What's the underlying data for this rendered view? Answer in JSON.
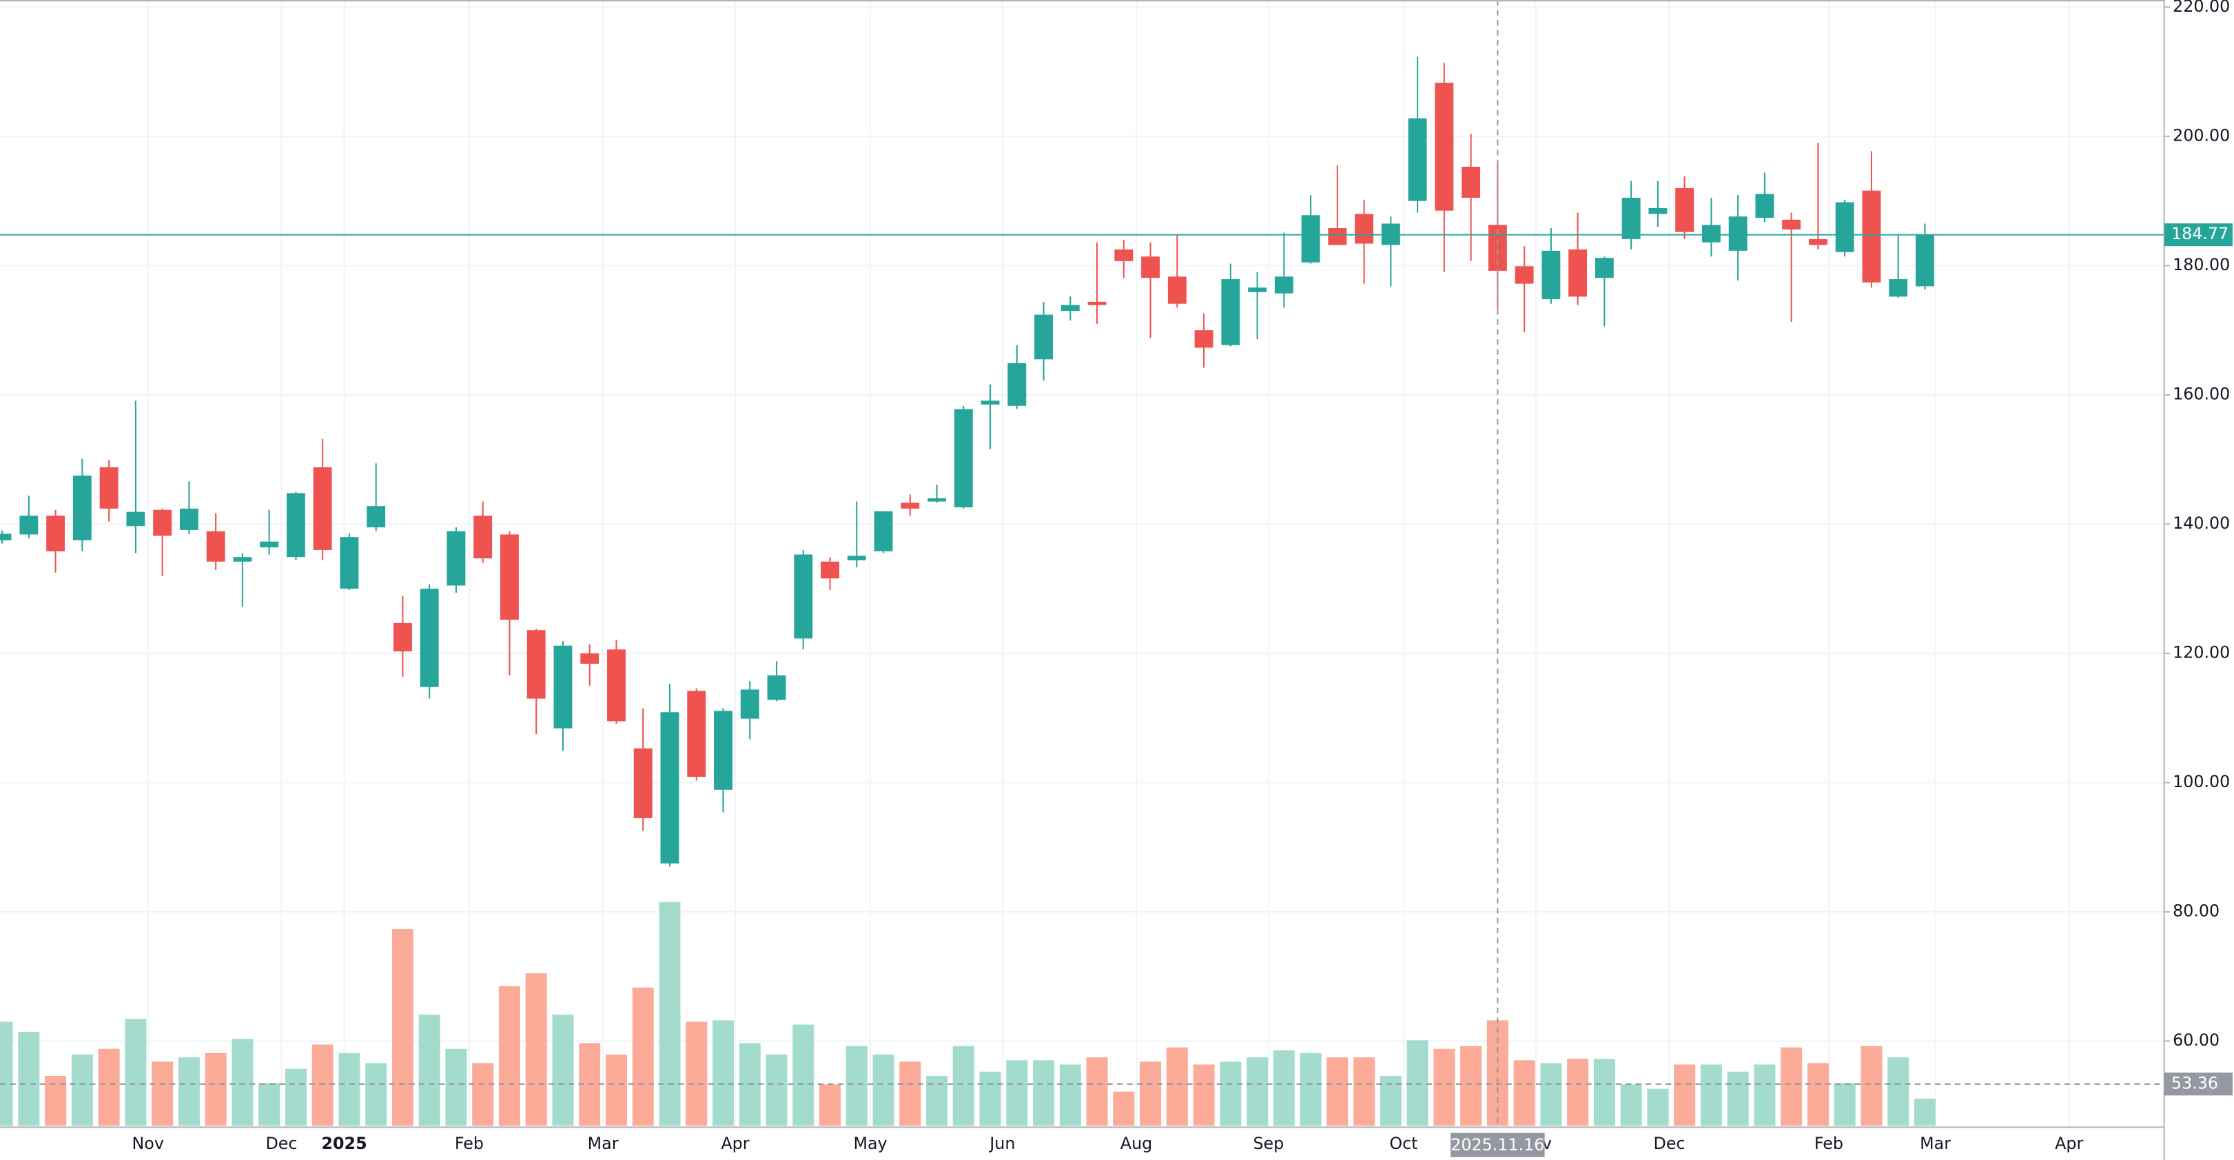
{
  "chart_data": {
    "type": "candlestick",
    "x": [
      0,
      1,
      2,
      3,
      4,
      5,
      6,
      7,
      8,
      9,
      10,
      11,
      12,
      13,
      14,
      15,
      16,
      17,
      18,
      19,
      20,
      21,
      22,
      23,
      24,
      25,
      26,
      27,
      28,
      29,
      30,
      31,
      32,
      33,
      34,
      35,
      36,
      37,
      38,
      39,
      40,
      41,
      42,
      43,
      44,
      45,
      46,
      47,
      48,
      49,
      50,
      51,
      52,
      53,
      54,
      55,
      56,
      57,
      58,
      59,
      60,
      61,
      62,
      63,
      64,
      65,
      66,
      67,
      68,
      69,
      70,
      71,
      72
    ],
    "open": [
      137.5,
      138.4,
      141.3,
      137.5,
      148.8,
      139.7,
      142.2,
      139.1,
      138.9,
      134.2,
      136.4,
      134.9,
      148.8,
      130.0,
      139.5,
      124.7,
      114.8,
      130.5,
      141.3,
      138.4,
      123.6,
      108.4,
      120.0,
      120.6,
      105.3,
      87.5,
      114.2,
      98.9,
      109.9,
      112.8,
      122.3,
      134.2,
      134.4,
      135.8,
      143.3,
      143.5,
      142.6,
      158.5,
      158.3,
      165.5,
      173.0,
      174.4,
      182.5,
      181.4,
      178.3,
      170.0,
      167.7,
      175.9,
      175.7,
      180.5,
      185.8,
      188.0,
      183.2,
      190.0,
      208.3,
      195.3,
      186.3,
      179.9,
      174.8,
      182.5,
      178.1,
      184.1,
      188.0,
      192.0,
      183.6,
      182.3,
      187.4,
      187.1,
      184.1,
      182.1,
      191.6,
      175.2,
      176.8
    ],
    "high": [
      139,
      144.4,
      142.2,
      150.1,
      149.9,
      159.1,
      142.4,
      146.6,
      141.7,
      135.5,
      142.2,
      145,
      153.2,
      138.6,
      149.4,
      128.9,
      130.7,
      139.5,
      143.5,
      138.9,
      123.8,
      121.9,
      121.4,
      122.1,
      111.5,
      115.3,
      114.6,
      111.5,
      115.7,
      118.8,
      136,
      134.9,
      143.5,
      142,
      144.6,
      146.1,
      158.3,
      161.6,
      167.7,
      174.4,
      175.2,
      183.6,
      184,
      183.6,
      184.7,
      172.6,
      180.3,
      179,
      185.1,
      190.9,
      195.5,
      190.2,
      187.6,
      212.3,
      211.4,
      200.4,
      196,
      183,
      185.8,
      188.2,
      181.4,
      193.1,
      193.1,
      193.8,
      190.5,
      190.9,
      194.4,
      188.2,
      199,
      190.2,
      197.7,
      184.7,
      186.5
    ],
    "low": [
      137,
      137.8,
      132.5,
      135.8,
      140.4,
      135.5,
      132,
      138.4,
      132.9,
      127.2,
      135.3,
      134.4,
      134.4,
      129.8,
      138.9,
      116.4,
      113,
      129.4,
      134,
      116.6,
      107.5,
      104.9,
      115,
      109.1,
      92.5,
      87,
      100.3,
      95.4,
      106.7,
      112.6,
      120.6,
      129.8,
      133.3,
      135.5,
      141.3,
      143.3,
      142.4,
      151.6,
      157.8,
      162.2,
      171.5,
      171,
      178.1,
      168.8,
      173.5,
      164.2,
      167.5,
      168.6,
      173.5,
      180.3,
      183.2,
      177.2,
      176.8,
      188.2,
      179,
      180.7,
      173.3,
      169.7,
      174.1,
      173.9,
      170.6,
      182.5,
      186,
      184.1,
      181.4,
      177.7,
      186.7,
      171.3,
      182.5,
      181.4,
      176.6,
      175,
      176.3
    ],
    "close": [
      138.5,
      141.3,
      135.8,
      147.5,
      142.4,
      141.9,
      138.2,
      142.4,
      134.2,
      134.9,
      137.3,
      144.8,
      136.0,
      138.0,
      142.8,
      120.3,
      130.0,
      138.9,
      134.7,
      125.2,
      113.0,
      121.2,
      118.4,
      109.5,
      94.5,
      110.9,
      100.9,
      111.1,
      114.4,
      116.6,
      135.3,
      131.6,
      135.1,
      142.0,
      142.4,
      144.0,
      157.8,
      159.1,
      164.9,
      172.4,
      173.9,
      173.9,
      180.7,
      178.1,
      174.1,
      167.3,
      177.9,
      176.6,
      178.3,
      187.8,
      183.2,
      183.4,
      186.5,
      202.8,
      188.5,
      190.5,
      179.2,
      177.2,
      182.3,
      175.2,
      181.2,
      190.5,
      188.9,
      185.2,
      186.3,
      187.6,
      191.1,
      185.6,
      183.2,
      189.8,
      177.4,
      177.9,
      184.77
    ],
    "volume": [
      73,
      66,
      35,
      50,
      54,
      75,
      45,
      48,
      51,
      61,
      30,
      40,
      57,
      51,
      44,
      138,
      78,
      54,
      44,
      98,
      107,
      78,
      58,
      50,
      97,
      157,
      73,
      74,
      58,
      50,
      71,
      29,
      56,
      50,
      45,
      35,
      56,
      38,
      46,
      46,
      43,
      48,
      24,
      45,
      55,
      43,
      45,
      48,
      53,
      51,
      48,
      48,
      35,
      60,
      54,
      56,
      74,
      46,
      44,
      47,
      47,
      29,
      26,
      43,
      43,
      38,
      43,
      55,
      44,
      30,
      56,
      48,
      19
    ],
    "up_color": "#26a69a",
    "down_color": "#ef5350",
    "volume_up_color": "#a3dccd",
    "volume_down_color": "#fbab98",
    "xlim": [
      -0.08,
      80.96
    ],
    "ylim": [
      46.9,
      221.1
    ],
    "xticks": [
      {
        "value": 5.46,
        "label": "Nov"
      },
      {
        "value": 10.46,
        "label": "Dec"
      },
      {
        "value": 12.81,
        "label": "2025"
      },
      {
        "value": 17.49,
        "label": "Feb"
      },
      {
        "value": 22.5,
        "label": "Mar"
      },
      {
        "value": 27.45,
        "label": "Apr"
      },
      {
        "value": 32.51,
        "label": "May"
      },
      {
        "value": 37.46,
        "label": "Jun"
      },
      {
        "value": 42.47,
        "label": "Aug"
      },
      {
        "value": 47.42,
        "label": "Sep"
      },
      {
        "value": 52.48,
        "label": "Oct"
      },
      {
        "value": 57.43,
        "label": "Nov"
      },
      {
        "value": 62.43,
        "label": "Dec"
      },
      {
        "value": 68.4,
        "label": "Feb"
      },
      {
        "value": 72.39,
        "label": "Mar"
      },
      {
        "value": 77.4,
        "label": "Apr"
      }
    ],
    "yticks": [
      {
        "value": 60,
        "label": "60.00"
      },
      {
        "value": 80,
        "label": "80.00"
      },
      {
        "value": 100,
        "label": "100.00"
      },
      {
        "value": 120,
        "label": "120.00"
      },
      {
        "value": 140,
        "label": "140.00"
      },
      {
        "value": 160,
        "label": "160.00"
      },
      {
        "value": 180,
        "label": "180.00"
      },
      {
        "value": 200,
        "label": "200.00"
      },
      {
        "value": 220,
        "label": "220.00"
      }
    ],
    "grid": true,
    "last_price": 184.77,
    "crosshair": {
      "x": 56,
      "x_label": "2025.11.16",
      "y": 53.36
    }
  }
}
